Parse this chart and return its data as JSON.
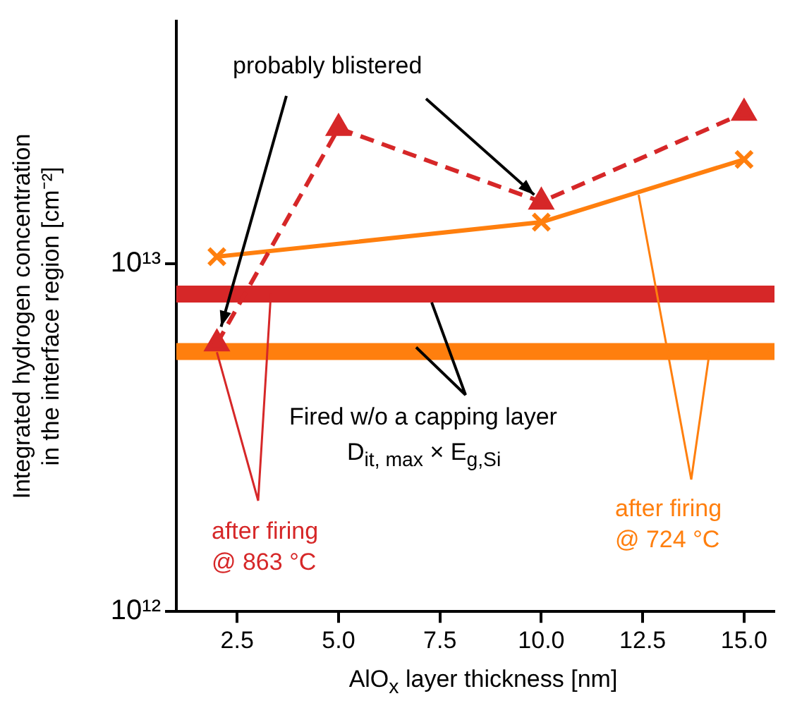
{
  "chart_data": {
    "type": "line",
    "xlabel": "AlO$_{x}$ layer thickness [nm]",
    "ylabel": "Integrated hydrogen concentration\nin the interface region [cm⁻²]",
    "xlim": [
      1,
      15.75
    ],
    "xticks": [
      {
        "value": 2.5,
        "label": "2.5"
      },
      {
        "value": 5,
        "label": "5.0"
      },
      {
        "value": 7.5,
        "label": "7.5"
      },
      {
        "value": 10,
        "label": "10.0"
      },
      {
        "value": 12.5,
        "label": "12.5"
      },
      {
        "value": 15,
        "label": "15.0"
      }
    ],
    "ylim": [
      1000000000000.0,
      50000000000000.0
    ],
    "yticks": [
      {
        "value": 1000000000000.0,
        "label": "10¹²"
      },
      {
        "value": 10000000000000.0,
        "label": "10¹³"
      }
    ],
    "log": "y",
    "grid": false,
    "legend": false,
    "series": [
      {
        "color": "#d62728",
        "x": [
          2,
          5,
          10,
          15
        ],
        "values": [
          5900000000000.0,
          24600000000000.0,
          15100000000000.0,
          27200000000000.0
        ],
        "marker": "triangle",
        "line_style": "dashed"
      },
      {
        "color": "#ff7f0e",
        "x": [
          2,
          10,
          15
        ],
        "values": [
          10500000000000.0,
          13200000000000.0,
          20000000000000.0
        ],
        "marker": "cross",
        "line_style": "solid"
      }
    ],
    "ref_lines": [
      {
        "axis": "y",
        "value": 8200000000000.0,
        "color": "#d62728"
      },
      {
        "axis": "y",
        "value": 5600000000000.0,
        "color": "#ff7f0e"
      }
    ],
    "annotations": [
      {
        "text": "probably blistered",
        "x": 10,
        "y": 15100000000000.0
      },
      "after firing\n@ 863 °C",
      "after firing\n@ 724 °C",
      "Fired w/o a capping layer",
      "D$_{it, max}$ × E$_{g,Si}$"
    ]
  }
}
